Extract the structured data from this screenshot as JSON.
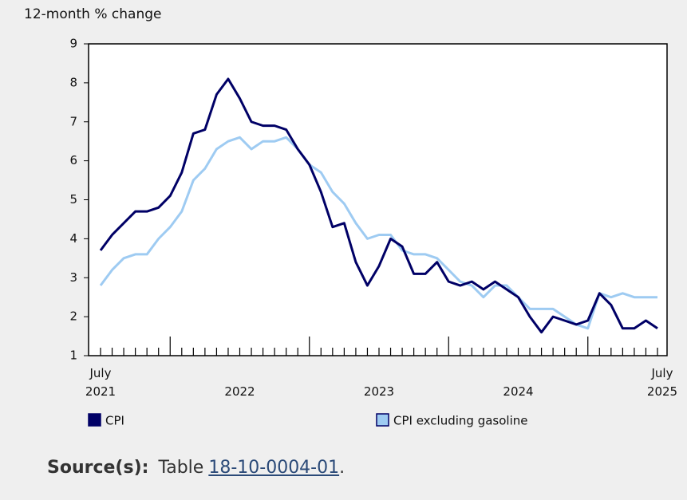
{
  "chart_data": {
    "type": "line",
    "ylabel": "12-month % change",
    "categories": [
      "July 2021",
      null,
      null,
      null,
      null,
      null,
      null,
      null,
      null,
      null,
      null,
      null,
      "2022",
      null,
      null,
      null,
      null,
      null,
      null,
      null,
      null,
      null,
      null,
      null,
      "2023",
      null,
      null,
      null,
      null,
      null,
      null,
      null,
      null,
      null,
      null,
      null,
      "2024",
      null,
      null,
      null,
      null,
      null,
      null,
      null,
      null,
      null,
      null,
      null,
      "July 2025"
    ],
    "series": [
      {
        "name": "CPI",
        "color": "#000066",
        "values": [
          3.7,
          4.1,
          4.4,
          4.7,
          4.7,
          4.8,
          5.1,
          5.7,
          6.7,
          6.8,
          7.7,
          8.1,
          7.6,
          7.0,
          6.9,
          6.9,
          6.8,
          6.3,
          5.9,
          5.2,
          4.3,
          4.4,
          3.4,
          2.8,
          3.3,
          4.0,
          3.8,
          3.1,
          3.1,
          3.4,
          2.9,
          2.8,
          2.9,
          2.7,
          2.9,
          2.7,
          2.5,
          2.0,
          1.6,
          2.0,
          1.9,
          1.8,
          1.9,
          2.6,
          2.3,
          1.7,
          1.7,
          1.9,
          1.7
        ]
      },
      {
        "name": "CPI excluding gasoline",
        "color": "#9ecbf2",
        "values": [
          2.8,
          3.2,
          3.5,
          3.6,
          3.6,
          4.0,
          4.3,
          4.7,
          5.5,
          5.8,
          6.3,
          6.5,
          6.6,
          6.3,
          6.5,
          6.5,
          6.6,
          6.3,
          5.9,
          5.7,
          5.2,
          4.9,
          4.4,
          4.0,
          4.1,
          4.1,
          3.7,
          3.6,
          3.6,
          3.5,
          3.2,
          2.9,
          2.8,
          2.5,
          2.8,
          2.8,
          2.5,
          2.2,
          2.2,
          2.2,
          2.0,
          1.8,
          1.7,
          2.6,
          2.5,
          2.6,
          2.5,
          2.5,
          2.5
        ]
      }
    ],
    "ylim": [
      1,
      9
    ],
    "yticks": [
      1,
      2,
      3,
      4,
      5,
      6,
      7,
      8,
      9
    ],
    "grid": false
  },
  "source": {
    "label": "Source(s):",
    "text": "Table",
    "link": "18-10-0004-01",
    "suffix": "."
  }
}
